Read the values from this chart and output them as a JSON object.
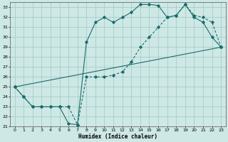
{
  "xlabel": "Humidex (Indice chaleur)",
  "xlim": [
    -0.5,
    23.5
  ],
  "ylim": [
    21,
    33.5
  ],
  "yticks": [
    21,
    22,
    23,
    24,
    25,
    26,
    27,
    28,
    29,
    30,
    31,
    32,
    33
  ],
  "xticks": [
    0,
    1,
    2,
    3,
    4,
    5,
    6,
    7,
    8,
    9,
    10,
    11,
    12,
    13,
    14,
    15,
    16,
    17,
    18,
    19,
    20,
    21,
    22,
    23
  ],
  "bg_color": "#cde8e5",
  "grid_color": "#a0c8c4",
  "line_color": "#1a6b6b",
  "line1_x": [
    0,
    1,
    2,
    3,
    4,
    5,
    6,
    7,
    8,
    9,
    10,
    11,
    12,
    13,
    14,
    15,
    16,
    17,
    18,
    19,
    20,
    21,
    22,
    23
  ],
  "line1_y": [
    25,
    24,
    23,
    23,
    23,
    23,
    21.3,
    21.2,
    29.5,
    31.5,
    32,
    31.5,
    32,
    32.5,
    33.3,
    33.3,
    33.2,
    32,
    32.2,
    33.3,
    32,
    31.5,
    30,
    29
  ],
  "line2_x": [
    0,
    1,
    2,
    3,
    4,
    5,
    6,
    7,
    8,
    9,
    10,
    11,
    12,
    13,
    14,
    15,
    16,
    17,
    18,
    19,
    20,
    21,
    22,
    23
  ],
  "line2_y": [
    25,
    24,
    23,
    23,
    23,
    23,
    23,
    21.2,
    26,
    26,
    26,
    26.2,
    26.5,
    27.5,
    29,
    30,
    31,
    32,
    32.2,
    33.3,
    32.2,
    32,
    31.5,
    29
  ],
  "line3_x": [
    0,
    23
  ],
  "line3_y": [
    25,
    29
  ]
}
